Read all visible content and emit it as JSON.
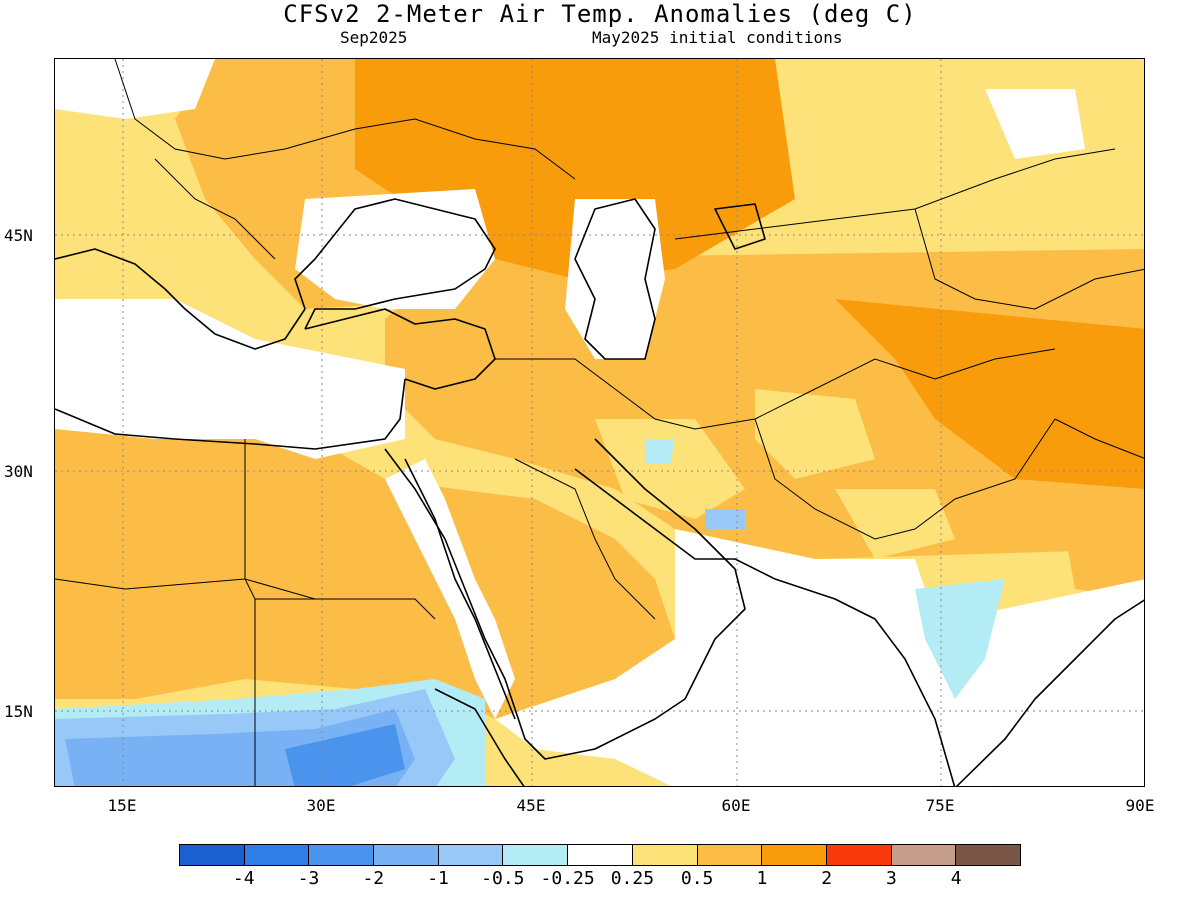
{
  "title": "CFSv2 2-Meter Air Temp. Anomalies (deg C)",
  "subtitle_left": "Sep2025",
  "subtitle_right": "May2025 initial conditions",
  "lat_labels": [
    "45N",
    "30N",
    "15N"
  ],
  "lon_labels": [
    "15E",
    "30E",
    "45E",
    "60E",
    "75E",
    "90E"
  ],
  "colorbar": {
    "colors": [
      "#1a60d0",
      "#2f7ee8",
      "#4a94ee",
      "#78b2f4",
      "#98c8f8",
      "#b4ecf6",
      "#ffffff",
      "#fde27a",
      "#fbbd46",
      "#f89c0c",
      "#fa3a0c",
      "#c69e8c",
      "#7a5646"
    ],
    "labels": [
      "-4",
      "-3",
      "-2",
      "-1",
      "-0.5",
      "-0.25",
      "0.25",
      "0.5",
      "1",
      "2",
      "3",
      "4"
    ]
  },
  "colors": {
    "anomaly_0_5_1": "#fbbd46",
    "anomaly_1_2": "#f89c0c",
    "anomaly_0_25_0_5": "#fde27a",
    "anomaly_neg_0_25_0_5": "#b4ecf6",
    "anomaly_neg_0_5_1": "#98c8f8",
    "anomaly_neg_1_2": "#78b2f4",
    "anomaly_neg_2_3": "#4a94ee"
  }
}
